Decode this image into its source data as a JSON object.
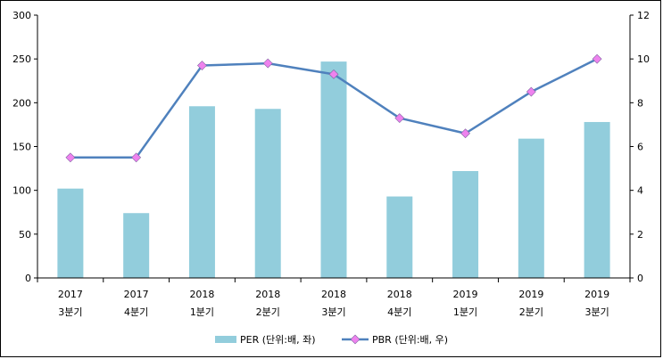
{
  "colors": {
    "bar": "#92cddc",
    "line": "#4f81bd",
    "marker": "#ee82ee",
    "axis": "#000000",
    "background": "#ffffff"
  },
  "chart_data": {
    "type": "bar",
    "categories": [
      {
        "year": "2017",
        "quarter": "3분기"
      },
      {
        "year": "2017",
        "quarter": "4분기"
      },
      {
        "year": "2018",
        "quarter": "1분기"
      },
      {
        "year": "2018",
        "quarter": "2분기"
      },
      {
        "year": "2018",
        "quarter": "3분기"
      },
      {
        "year": "2018",
        "quarter": "4분기"
      },
      {
        "year": "2019",
        "quarter": "1분기"
      },
      {
        "year": "2019",
        "quarter": "2분기"
      },
      {
        "year": "2019",
        "quarter": "3분기"
      }
    ],
    "series": [
      {
        "name": "PER (단위:배, 좌)",
        "type": "bar",
        "axis": "left",
        "values": [
          102,
          74,
          196,
          193,
          247,
          93,
          122,
          159,
          178
        ]
      },
      {
        "name": "PBR (단위:배, 우)",
        "type": "line",
        "axis": "right",
        "marker": "diamond",
        "values": [
          5.5,
          5.5,
          9.7,
          9.8,
          9.3,
          7.3,
          6.6,
          8.5,
          10.0
        ]
      }
    ],
    "ylim_left": [
      0,
      300
    ],
    "yticks_left": [
      "0",
      "50",
      "100",
      "150",
      "200",
      "250",
      "300"
    ],
    "ylim_right": [
      0,
      12
    ],
    "yticks_right": [
      "0",
      "2",
      "4",
      "6",
      "8",
      "10",
      "12"
    ],
    "grid": false,
    "legend_position": "bottom"
  }
}
